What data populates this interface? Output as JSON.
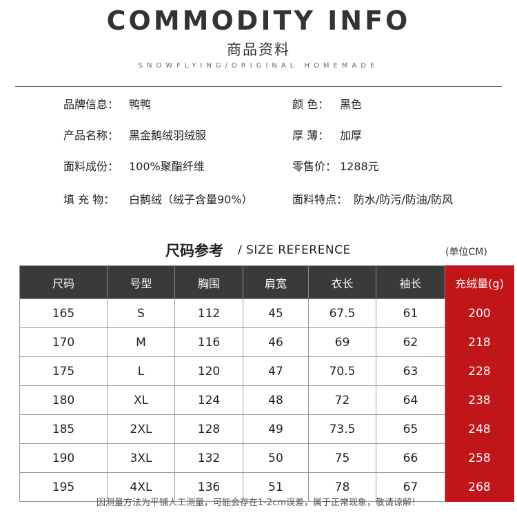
{
  "header": {
    "title": "COMMODITY INFO",
    "subtitle": "商品资料",
    "tagline": "SNOWFLYING/ORIGINAL HOMEMADE"
  },
  "info": [
    {
      "label": "品牌信息：",
      "value": "鸭鸭"
    },
    {
      "label": "颜 色：",
      "value": "黑色"
    },
    {
      "label": "产品名称：",
      "value": "黑金鹅绒羽绒服"
    },
    {
      "label": "厚 薄：",
      "value": "加厚"
    },
    {
      "label": "面料成份：",
      "value": "100%聚酯纤维"
    },
    {
      "label": "零售价：",
      "value": "1288元"
    },
    {
      "label": "填 充 物：",
      "value": "白鹅绒（绒子含量90%）"
    },
    {
      "label": "面料特点：",
      "value": "防水/防污/防油/防风"
    }
  ],
  "size_reference": {
    "title": "尺码参考",
    "subtitle": "/ SIZE REFERENCE",
    "unit": "(单位CM)"
  },
  "table": {
    "headers": [
      "尺码",
      "号型",
      "胸围",
      "肩宽",
      "衣长",
      "袖长",
      "充绒量(g)"
    ],
    "rows": [
      [
        "165",
        "S",
        "112",
        "45",
        "67.5",
        "61",
        "200"
      ],
      [
        "170",
        "M",
        "116",
        "46",
        "69",
        "62",
        "218"
      ],
      [
        "175",
        "L",
        "120",
        "47",
        "70.5",
        "63",
        "228"
      ],
      [
        "180",
        "XL",
        "124",
        "48",
        "72",
        "64",
        "238"
      ],
      [
        "185",
        "2XL",
        "128",
        "49",
        "73.5",
        "65",
        "248"
      ],
      [
        "190",
        "3XL",
        "132",
        "50",
        "75",
        "66",
        "258"
      ],
      [
        "195",
        "4XL",
        "136",
        "51",
        "78",
        "67",
        "268"
      ]
    ]
  },
  "note": "因测量方法为平铺人工测量，可能会存在1-2cm误差，属于正常现象，敬请谅解！"
}
